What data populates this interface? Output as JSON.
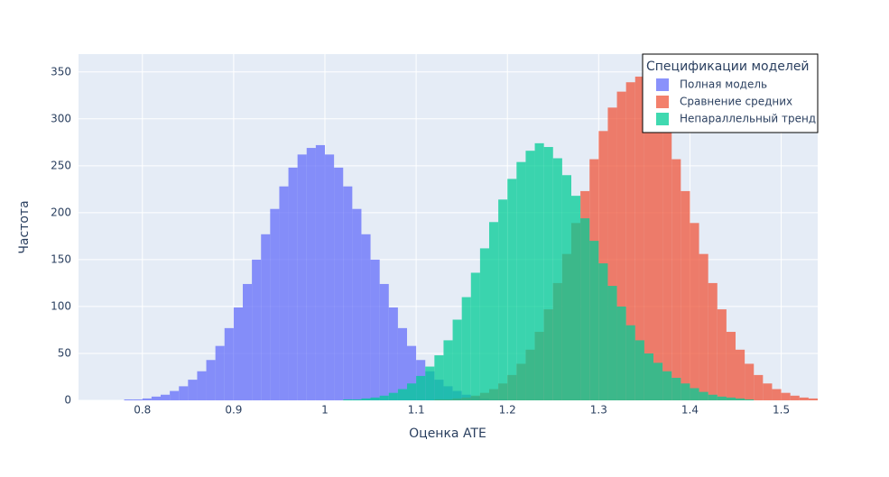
{
  "chart_data": {
    "type": "histogram",
    "xlabel": "Оценка ATE",
    "ylabel": "Частота",
    "legend_title": "Спецификации моделей",
    "legend_position": "upper right",
    "xlim": [
      0.73,
      1.54
    ],
    "ylim": [
      0,
      369
    ],
    "xticks": [
      0.8,
      0.9,
      1,
      1.1,
      1.2,
      1.3,
      1.4,
      1.5
    ],
    "yticks": [
      0,
      50,
      100,
      150,
      200,
      250,
      300,
      350
    ],
    "grid": true,
    "opacity": 0.75,
    "series": [
      {
        "name": "Полная модель",
        "color": "#636efa",
        "bins": [
          0.76,
          0.77,
          0.78,
          0.79,
          0.8,
          0.81,
          0.82,
          0.83,
          0.84,
          0.85,
          0.86,
          0.87,
          0.88,
          0.89,
          0.9,
          0.91,
          0.92,
          0.93,
          0.94,
          0.95,
          0.96,
          0.97,
          0.98,
          0.99,
          1.0,
          1.01,
          1.02,
          1.03,
          1.04,
          1.05,
          1.06,
          1.07,
          1.08,
          1.09,
          1.1,
          1.11,
          1.12,
          1.13,
          1.14,
          1.15,
          1.16,
          1.17,
          1.18,
          1.19,
          1.2,
          1.21,
          1.22
        ],
        "values": [
          0,
          0,
          1,
          1,
          2,
          4,
          6,
          10,
          15,
          22,
          31,
          43,
          58,
          77,
          99,
          124,
          150,
          177,
          204,
          228,
          248,
          262,
          269,
          272,
          262,
          248,
          228,
          204,
          177,
          150,
          124,
          99,
          77,
          58,
          43,
          31,
          22,
          15,
          10,
          6,
          4,
          2,
          1,
          1,
          0,
          0
        ]
      },
      {
        "name": "Сравнение средних",
        "color": "#EF553B",
        "bins": [
          1.11,
          1.12,
          1.13,
          1.14,
          1.15,
          1.16,
          1.17,
          1.18,
          1.19,
          1.2,
          1.21,
          1.22,
          1.23,
          1.24,
          1.25,
          1.26,
          1.27,
          1.28,
          1.29,
          1.3,
          1.31,
          1.32,
          1.33,
          1.34,
          1.35,
          1.36,
          1.37,
          1.38,
          1.39,
          1.4,
          1.41,
          1.42,
          1.43,
          1.44,
          1.45,
          1.46,
          1.47,
          1.48,
          1.49,
          1.5,
          1.51,
          1.52,
          1.53,
          1.54
        ],
        "values": [
          0,
          1,
          1,
          2,
          3,
          5,
          8,
          12,
          18,
          27,
          39,
          54,
          73,
          97,
          125,
          156,
          189,
          223,
          257,
          287,
          312,
          329,
          339,
          345,
          329,
          312,
          287,
          257,
          223,
          189,
          156,
          125,
          97,
          73,
          54,
          39,
          27,
          18,
          12,
          8,
          5,
          3,
          2
        ]
      },
      {
        "name": "Непараллельный тренд",
        "color": "#00cc96",
        "bins": [
          1.01,
          1.02,
          1.03,
          1.04,
          1.05,
          1.06,
          1.07,
          1.08,
          1.09,
          1.1,
          1.11,
          1.12,
          1.13,
          1.14,
          1.15,
          1.16,
          1.17,
          1.18,
          1.19,
          1.2,
          1.21,
          1.22,
          1.23,
          1.24,
          1.25,
          1.26,
          1.27,
          1.28,
          1.29,
          1.3,
          1.31,
          1.32,
          1.33,
          1.34,
          1.35,
          1.36,
          1.37,
          1.38,
          1.39,
          1.4,
          1.41,
          1.42,
          1.43,
          1.44,
          1.45,
          1.46,
          1.47,
          1.48
        ],
        "values": [
          0,
          1,
          1,
          2,
          3,
          5,
          8,
          12,
          18,
          26,
          36,
          48,
          64,
          86,
          110,
          136,
          162,
          190,
          214,
          236,
          254,
          266,
          274,
          270,
          258,
          240,
          218,
          194,
          170,
          146,
          122,
          100,
          80,
          64,
          50,
          40,
          31,
          24,
          18,
          13,
          9,
          6,
          4,
          3,
          2,
          1,
          0
        ]
      }
    ]
  }
}
